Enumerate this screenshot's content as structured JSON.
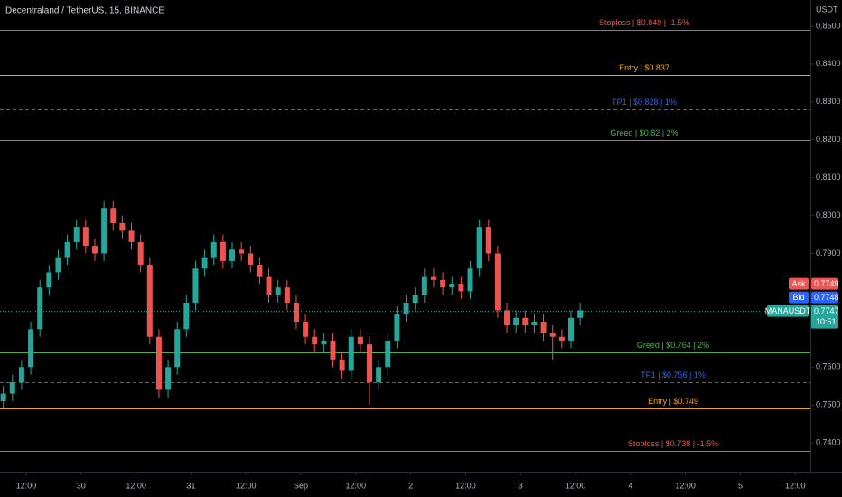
{
  "chart_data": {
    "type": "candlestick",
    "title": "Decentraland / TetherUS, 15, BINANCE",
    "y_axis_label": "USDT",
    "x": [
      -5,
      -3,
      -1,
      1,
      3,
      5,
      7,
      9,
      11,
      13,
      15,
      17,
      19,
      21,
      23,
      25,
      27,
      29,
      31,
      33,
      35,
      37,
      39,
      41,
      43,
      45,
      47,
      49,
      51,
      53,
      55,
      57,
      59,
      61,
      63,
      65,
      67,
      69,
      71,
      73,
      75,
      77,
      79,
      81,
      83,
      85,
      87,
      89,
      91,
      93,
      95,
      97,
      99,
      101,
      103,
      105,
      107,
      109,
      111,
      113,
      115,
      117,
      119,
      121
    ],
    "open": [
      0.751,
      0.753,
      0.756,
      0.76,
      0.77,
      0.781,
      0.785,
      0.789,
      0.793,
      0.797,
      0.792,
      0.79,
      0.802,
      0.798,
      0.796,
      0.793,
      0.787,
      0.768,
      0.754,
      0.76,
      0.77,
      0.777,
      0.786,
      0.789,
      0.793,
      0.788,
      0.791,
      0.79,
      0.787,
      0.784,
      0.779,
      0.781,
      0.777,
      0.772,
      0.768,
      0.766,
      0.767,
      0.762,
      0.759,
      0.768,
      0.766,
      0.756,
      0.76,
      0.767,
      0.774,
      0.777,
      0.779,
      0.784,
      0.783,
      0.781,
      0.782,
      0.78,
      0.786,
      0.797,
      0.79,
      0.775,
      0.771,
      0.773,
      0.771,
      0.772,
      0.769,
      0.768,
      0.767,
      0.773
    ],
    "high": [
      0.755,
      0.758,
      0.762,
      0.772,
      0.783,
      0.787,
      0.791,
      0.795,
      0.799,
      0.799,
      0.794,
      0.804,
      0.804,
      0.8,
      0.798,
      0.795,
      0.789,
      0.77,
      0.762,
      0.772,
      0.779,
      0.788,
      0.791,
      0.795,
      0.795,
      0.793,
      0.793,
      0.792,
      0.789,
      0.786,
      0.783,
      0.783,
      0.779,
      0.774,
      0.77,
      0.769,
      0.769,
      0.764,
      0.77,
      0.77,
      0.768,
      0.762,
      0.769,
      0.776,
      0.779,
      0.781,
      0.786,
      0.786,
      0.785,
      0.784,
      0.784,
      0.788,
      0.799,
      0.799,
      0.792,
      0.777,
      0.775,
      0.775,
      0.774,
      0.774,
      0.771,
      0.77,
      0.775,
      0.777
    ],
    "low": [
      0.749,
      0.751,
      0.754,
      0.758,
      0.768,
      0.779,
      0.783,
      0.787,
      0.791,
      0.79,
      0.788,
      0.788,
      0.796,
      0.794,
      0.791,
      0.785,
      0.766,
      0.752,
      0.752,
      0.758,
      0.768,
      0.775,
      0.784,
      0.787,
      0.786,
      0.786,
      0.788,
      0.785,
      0.782,
      0.777,
      0.777,
      0.775,
      0.77,
      0.766,
      0.764,
      0.764,
      0.76,
      0.757,
      0.757,
      0.764,
      0.75,
      0.754,
      0.758,
      0.765,
      0.772,
      0.775,
      0.777,
      0.781,
      0.779,
      0.779,
      0.778,
      0.778,
      0.784,
      0.788,
      0.773,
      0.769,
      0.769,
      0.769,
      0.769,
      0.767,
      0.762,
      0.765,
      0.765,
      0.771
    ],
    "close": [
      0.753,
      0.756,
      0.76,
      0.77,
      0.781,
      0.785,
      0.789,
      0.793,
      0.797,
      0.792,
      0.79,
      0.802,
      0.798,
      0.796,
      0.793,
      0.787,
      0.768,
      0.754,
      0.76,
      0.77,
      0.777,
      0.786,
      0.789,
      0.793,
      0.788,
      0.791,
      0.79,
      0.787,
      0.784,
      0.779,
      0.781,
      0.777,
      0.772,
      0.768,
      0.766,
      0.767,
      0.762,
      0.759,
      0.768,
      0.766,
      0.756,
      0.76,
      0.767,
      0.774,
      0.777,
      0.779,
      0.784,
      0.783,
      0.781,
      0.782,
      0.78,
      0.786,
      0.797,
      0.79,
      0.775,
      0.771,
      0.773,
      0.771,
      0.772,
      0.769,
      0.768,
      0.767,
      0.773,
      0.775
    ],
    "up_color": "#26a69a",
    "down_color": "#ef5350",
    "xlim": [
      -5.72,
      171.3
    ],
    "xticks": [
      {
        "value": 0,
        "label": "12:00"
      },
      {
        "value": 12,
        "label": "30"
      },
      {
        "value": 24,
        "label": "12:00"
      },
      {
        "value": 36,
        "label": "31"
      },
      {
        "value": 48,
        "label": "12:00"
      },
      {
        "value": 60,
        "label": "Sep"
      },
      {
        "value": 72,
        "label": "12:00"
      },
      {
        "value": 84,
        "label": "2"
      },
      {
        "value": 96,
        "label": "12:00"
      },
      {
        "value": 108,
        "label": "3"
      },
      {
        "value": 120,
        "label": "12:00"
      },
      {
        "value": 132,
        "label": "4"
      },
      {
        "value": 144,
        "label": "12:00"
      },
      {
        "value": 156,
        "label": "5"
      },
      {
        "value": 168,
        "label": "12:00"
      }
    ],
    "ylim": [
      0.7324,
      0.8569
    ],
    "yticks": [
      {
        "value": 0.85,
        "label": "0.8500"
      },
      {
        "value": 0.84,
        "label": "0.8400"
      },
      {
        "value": 0.83,
        "label": "0.8300"
      },
      {
        "value": 0.82,
        "label": "0.8200"
      },
      {
        "value": 0.81,
        "label": "0.8100"
      },
      {
        "value": 0.8,
        "label": "0.8000"
      },
      {
        "value": 0.79,
        "label": "0.7900"
      },
      {
        "value": 0.76,
        "label": "0.7600"
      },
      {
        "value": 0.75,
        "label": "0.7500"
      },
      {
        "value": 0.74,
        "label": "0.7400"
      }
    ],
    "levels": [
      {
        "label": "Stoploss | $0.849 | -1.5%",
        "value": 0.849,
        "color": "#f05350",
        "dashed": false
      },
      {
        "label": "Entry | $0.837",
        "value": 0.837,
        "color": "#f7a21b",
        "dashed": false
      },
      {
        "label": "TP1 | $0.828 | 1%",
        "value": 0.828,
        "color": "#2962ff",
        "dashed": true
      },
      {
        "label": "Greed | $0.82 | 2%",
        "value": 0.82,
        "color": "#4caf50",
        "dashed": false
      },
      {
        "label": "Greed | $0.764 | 2%",
        "value": 0.764,
        "color": "#4caf50",
        "dashed": false
      },
      {
        "label": "TP1 | $0.756 | 1%",
        "value": 0.756,
        "color": "#2962ff",
        "dashed": true
      },
      {
        "label": "Entry | $0.749",
        "value": 0.749,
        "color": "#f7a21b",
        "dashed": false
      },
      {
        "label": "Stoploss | $0.738 | -1.5%",
        "value": 0.738,
        "color": "#f05350",
        "dashed": false
      }
    ],
    "price_tags": [
      {
        "label": "Ask",
        "value": 0.7749,
        "color": "#f05350"
      },
      {
        "label": "Bid",
        "value": 0.7748,
        "color": "#2962ff"
      },
      {
        "label": "MANAUSDT",
        "value": 0.7747,
        "color": "#26a69a"
      }
    ],
    "countdown": "10:51"
  }
}
